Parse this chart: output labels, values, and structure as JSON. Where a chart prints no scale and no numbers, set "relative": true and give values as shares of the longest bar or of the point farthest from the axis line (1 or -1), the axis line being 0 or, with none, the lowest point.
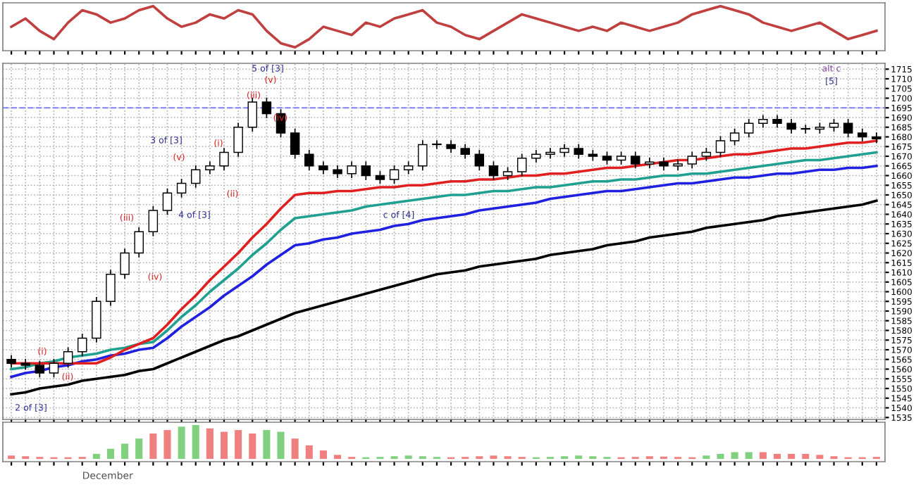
{
  "chart_data": [
    {
      "type": "line",
      "relative": true,
      "tick_labels": false,
      "categories": [
        null,
        null,
        null,
        null,
        null,
        null,
        null,
        null,
        null,
        null,
        null,
        null,
        null,
        null,
        null,
        null,
        null,
        null,
        null,
        null,
        null,
        null,
        null,
        null,
        null,
        null,
        null,
        null,
        null,
        null,
        null,
        null,
        null,
        null,
        null,
        null,
        null,
        null,
        null,
        null,
        null,
        null,
        null,
        null,
        null,
        null,
        null,
        null,
        null,
        null,
        null,
        null,
        null,
        null,
        null,
        null,
        null,
        null,
        null,
        null,
        null,
        null
      ],
      "series": [
        {
          "color": "#c04040",
          "values": [
            0.5,
            0.7,
            0.4,
            0.2,
            0.6,
            0.9,
            0.8,
            0.6,
            0.7,
            0.9,
            1.0,
            0.7,
            0.5,
            0.6,
            0.8,
            0.7,
            0.9,
            0.8,
            0.4,
            0.1,
            0.0,
            0.2,
            0.5,
            0.4,
            0.3,
            0.6,
            0.5,
            0.7,
            0.8,
            0.9,
            0.6,
            0.5,
            0.3,
            0.2,
            0.4,
            0.6,
            0.8,
            0.7,
            0.6,
            0.5,
            0.4,
            0.5,
            0.4,
            0.6,
            0.5,
            0.4,
            0.5,
            0.6,
            0.8,
            0.9,
            1.0,
            0.9,
            0.8,
            0.6,
            0.5,
            0.4,
            0.5,
            0.6,
            0.4,
            0.2,
            0.3,
            0.4
          ]
        }
      ]
    },
    {
      "type": "candlestick",
      "tick_labels": "y",
      "grid": true,
      "categories": [
        null,
        null,
        null,
        null,
        null,
        null,
        null,
        null,
        null,
        null,
        null,
        null,
        null,
        null,
        null,
        null,
        null,
        null,
        null,
        null,
        null,
        null,
        null,
        null,
        null,
        null,
        null,
        null,
        null,
        null,
        null,
        null,
        null,
        null,
        null,
        null,
        null,
        null,
        null,
        null,
        null,
        null,
        null,
        null,
        null,
        null,
        null,
        null,
        null,
        null,
        null,
        null,
        null,
        null,
        null,
        null,
        null,
        null,
        null,
        null,
        null,
        null
      ],
      "ohlc": [
        [
          1565,
          1567,
          1561,
          1563
        ],
        [
          1563,
          1565,
          1560,
          1562
        ],
        [
          1562,
          1564,
          1556,
          1558
        ],
        [
          1558,
          1565,
          1556,
          1563
        ],
        [
          1563,
          1571,
          1561,
          1569
        ],
        [
          1569,
          1578,
          1567,
          1576
        ],
        [
          1576,
          1597,
          1574,
          1595
        ],
        [
          1595,
          1611,
          1593,
          1609
        ],
        [
          1609,
          1622,
          1607,
          1620
        ],
        [
          1620,
          1633,
          1618,
          1631
        ],
        [
          1631,
          1644,
          1629,
          1642
        ],
        [
          1642,
          1653,
          1640,
          1651
        ],
        [
          1651,
          1658,
          1649,
          1656
        ],
        [
          1656,
          1665,
          1654,
          1663
        ],
        [
          1663,
          1667,
          1661,
          1665
        ],
        [
          1665,
          1674,
          1663,
          1672
        ],
        [
          1672,
          1687,
          1670,
          1685
        ],
        [
          1685,
          1700,
          1683,
          1698
        ],
        [
          1698,
          1700,
          1690,
          1692
        ],
        [
          1692,
          1694,
          1680,
          1682
        ],
        [
          1682,
          1684,
          1669,
          1671
        ],
        [
          1671,
          1673,
          1663,
          1665
        ],
        [
          1665,
          1667,
          1661,
          1663
        ],
        [
          1663,
          1665,
          1659,
          1661
        ],
        [
          1661,
          1667,
          1659,
          1665
        ],
        [
          1665,
          1667,
          1658,
          1660
        ],
        [
          1660,
          1662,
          1656,
          1658
        ],
        [
          1658,
          1665,
          1656,
          1663
        ],
        [
          1663,
          1667,
          1661,
          1665
        ],
        [
          1665,
          1678,
          1663,
          1676
        ],
        [
          1676,
          1678,
          1674,
          1676
        ],
        [
          1676,
          1678,
          1672,
          1674
        ],
        [
          1674,
          1676,
          1669,
          1671
        ],
        [
          1671,
          1673,
          1663,
          1665
        ],
        [
          1665,
          1667,
          1658,
          1660
        ],
        [
          1660,
          1664,
          1658,
          1662
        ],
        [
          1662,
          1671,
          1660,
          1669
        ],
        [
          1669,
          1673,
          1667,
          1671
        ],
        [
          1671,
          1674,
          1669,
          1672
        ],
        [
          1672,
          1676,
          1670,
          1674
        ],
        [
          1674,
          1676,
          1669,
          1671
        ],
        [
          1671,
          1673,
          1668,
          1670
        ],
        [
          1670,
          1672,
          1666,
          1668
        ],
        [
          1668,
          1672,
          1666,
          1670
        ],
        [
          1670,
          1672,
          1664,
          1666
        ],
        [
          1666,
          1669,
          1664,
          1667
        ],
        [
          1667,
          1669,
          1663,
          1665
        ],
        [
          1665,
          1668,
          1663,
          1666
        ],
        [
          1666,
          1672,
          1664,
          1670
        ],
        [
          1670,
          1674,
          1668,
          1672
        ],
        [
          1672,
          1680,
          1670,
          1678
        ],
        [
          1678,
          1684,
          1676,
          1682
        ],
        [
          1682,
          1689,
          1680,
          1687
        ],
        [
          1687,
          1691,
          1685,
          1689
        ],
        [
          1689,
          1691,
          1685,
          1687
        ],
        [
          1687,
          1689,
          1682,
          1684
        ],
        [
          1684,
          1686,
          1682,
          1684
        ],
        [
          1684,
          1687,
          1682,
          1685
        ],
        [
          1685,
          1689,
          1683,
          1687
        ],
        [
          1687,
          1689,
          1680,
          1682
        ],
        [
          1682,
          1684,
          1678,
          1680
        ],
        [
          1680,
          1682,
          1677,
          1679
        ]
      ],
      "series": [
        {
          "type": "line",
          "color": "#000000",
          "values": [
            1547,
            1548,
            1550,
            1551,
            1552,
            1554,
            1555,
            1556,
            1557,
            1559,
            1560,
            1563,
            1566,
            1569,
            1572,
            1575,
            1577,
            1580,
            1583,
            1586,
            1589,
            1591,
            1593,
            1595,
            1597,
            1599,
            1601,
            1603,
            1605,
            1607,
            1609,
            1610,
            1611,
            1613,
            1614,
            1615,
            1616,
            1617,
            1619,
            1620,
            1621,
            1622,
            1624,
            1625,
            1626,
            1628,
            1629,
            1630,
            1631,
            1633,
            1634,
            1635,
            1636,
            1637,
            1639,
            1640,
            1641,
            1642,
            1643,
            1644,
            1645,
            1647
          ]
        },
        {
          "type": "line",
          "color": "#2020e0",
          "values": [
            1556,
            1558,
            1559,
            1561,
            1562,
            1564,
            1565,
            1567,
            1568,
            1570,
            1571,
            1576,
            1582,
            1587,
            1592,
            1598,
            1603,
            1608,
            1614,
            1619,
            1624,
            1625,
            1627,
            1628,
            1630,
            1631,
            1632,
            1634,
            1635,
            1637,
            1638,
            1639,
            1640,
            1642,
            1643,
            1644,
            1645,
            1646,
            1648,
            1649,
            1650,
            1651,
            1652,
            1652,
            1653,
            1654,
            1655,
            1656,
            1656,
            1657,
            1658,
            1659,
            1659,
            1660,
            1661,
            1661,
            1662,
            1663,
            1663,
            1664,
            1664,
            1665
          ]
        },
        {
          "type": "line",
          "color": "#20a090",
          "values": [
            1560,
            1561,
            1563,
            1564,
            1566,
            1567,
            1568,
            1570,
            1571,
            1573,
            1574,
            1580,
            1587,
            1593,
            1600,
            1606,
            1612,
            1619,
            1625,
            1632,
            1638,
            1639,
            1640,
            1641,
            1642,
            1644,
            1645,
            1646,
            1647,
            1648,
            1649,
            1650,
            1650,
            1651,
            1652,
            1652,
            1653,
            1654,
            1654,
            1655,
            1656,
            1657,
            1657,
            1658,
            1658,
            1659,
            1660,
            1660,
            1661,
            1661,
            1662,
            1663,
            1664,
            1665,
            1666,
            1667,
            1668,
            1668,
            1669,
            1670,
            1671,
            1672
          ]
        },
        {
          "type": "line",
          "color": "#e02020",
          "values": [
            1563,
            1563,
            1563,
            1563,
            1563,
            1563,
            1563,
            1566,
            1570,
            1573,
            1576,
            1583,
            1591,
            1598,
            1606,
            1613,
            1620,
            1628,
            1635,
            1643,
            1650,
            1651,
            1651,
            1652,
            1652,
            1653,
            1654,
            1654,
            1655,
            1655,
            1656,
            1657,
            1657,
            1658,
            1658,
            1659,
            1660,
            1660,
            1661,
            1661,
            1662,
            1663,
            1664,
            1664,
            1665,
            1666,
            1667,
            1668,
            1668,
            1669,
            1670,
            1671,
            1671,
            1672,
            1673,
            1674,
            1674,
            1675,
            1676,
            1677,
            1677,
            1678
          ]
        }
      ],
      "ylim": [
        1534,
        1718
      ],
      "yticks": [
        1535,
        1540,
        1545,
        1550,
        1555,
        1560,
        1565,
        1570,
        1575,
        1580,
        1585,
        1590,
        1595,
        1600,
        1605,
        1610,
        1615,
        1620,
        1625,
        1630,
        1635,
        1640,
        1645,
        1650,
        1655,
        1660,
        1665,
        1670,
        1675,
        1680,
        1685,
        1690,
        1695,
        1700,
        1705,
        1710,
        1715
      ],
      "ref_lines": [
        {
          "axis": "y",
          "value": 1695,
          "color": "#8080ff",
          "line_style": "dashed"
        }
      ],
      "annotations": [
        "2 of [3]",
        "(i)",
        "(ii)",
        "(iii)",
        "(iv)",
        "3 of [3]",
        "(v)",
        "4 of [3]",
        "(i)",
        "(ii)",
        "(iii)",
        "5 of [3]",
        "(v)",
        "(iv)",
        "c of [4]",
        "alt c",
        "[5]"
      ]
    },
    {
      "type": "bar",
      "relative": true,
      "tick_labels": false,
      "categories": [
        null,
        null,
        null,
        null,
        null,
        null,
        null,
        null,
        null,
        null,
        null,
        null,
        null,
        null,
        null,
        null,
        null,
        null,
        null,
        null,
        null,
        null,
        null,
        null,
        null,
        null,
        null,
        null,
        null,
        null,
        null,
        null,
        null,
        null,
        null,
        null,
        null,
        null,
        null,
        null,
        null,
        null,
        null,
        null,
        null,
        null,
        null,
        null,
        null,
        null,
        null,
        null,
        null,
        null,
        null,
        null,
        null,
        null,
        null,
        null,
        null,
        null
      ],
      "values": [
        0.1,
        0.08,
        0.06,
        0.05,
        0.05,
        0.06,
        0.15,
        0.3,
        0.45,
        0.6,
        0.75,
        0.85,
        0.95,
        1.0,
        0.9,
        0.8,
        0.85,
        0.75,
        0.85,
        0.8,
        0.6,
        0.4,
        0.25,
        0.12,
        0.06,
        0.05,
        0.06,
        0.08,
        0.1,
        0.08,
        0.06,
        0.05,
        0.06,
        0.08,
        0.1,
        0.08,
        0.06,
        0.05,
        0.06,
        0.08,
        0.1,
        0.08,
        0.06,
        0.05,
        0.06,
        0.08,
        0.07,
        0.06,
        0.05,
        0.1,
        0.15,
        0.2,
        0.2,
        0.2,
        0.15,
        0.15,
        0.15,
        0.12,
        0.08,
        0.05,
        0.05,
        0.06
      ],
      "colors": [
        "#f08080",
        "#f08080",
        "#f08080",
        "#f08080",
        "#f08080",
        "#f08080",
        "#80d080",
        "#80d080",
        "#80d080",
        "#80d080",
        "#f08080",
        "#f08080",
        "#80d080",
        "#80d080",
        "#f08080",
        "#f08080",
        "#f08080",
        "#f08080",
        "#80d080",
        "#80d080",
        "#f08080",
        "#f08080",
        "#f08080",
        "#f08080",
        "#f08080",
        "#80d080",
        "#80d080",
        "#80d080",
        "#80d080",
        "#80d080",
        "#80d080",
        "#f08080",
        "#f08080",
        "#f08080",
        "#f08080",
        "#f08080",
        "#f08080",
        "#80d080",
        "#80d080",
        "#80d080",
        "#80d080",
        "#80d080",
        "#80d080",
        "#f08080",
        "#f08080",
        "#f08080",
        "#f08080",
        "#f08080",
        "#f08080",
        "#80d080",
        "#80d080",
        "#80d080",
        "#80d080",
        "#f08080",
        "#f08080",
        "#f08080",
        "#f08080",
        "#f08080",
        "#f08080",
        "#f08080",
        "#f08080",
        "#f08080"
      ],
      "annotations": [
        "December"
      ]
    }
  ]
}
